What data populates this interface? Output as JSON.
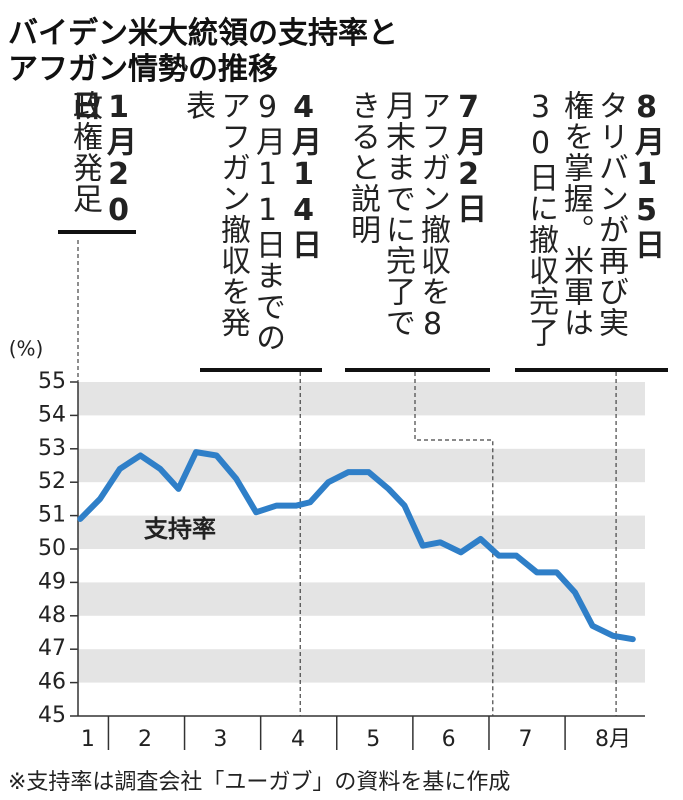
{
  "chart_data": {
    "type": "line",
    "title": [
      "バイデン米大統領の支持率と",
      "アフガン情勢の推移"
    ],
    "y_unit": "(%)",
    "series": [
      {
        "name": "支持率",
        "color": "#2f7fc8",
        "x": [
          1.63,
          1.89,
          2.15,
          2.42,
          2.68,
          2.92,
          3.15,
          3.42,
          3.68,
          3.94,
          4.21,
          4.47,
          4.65,
          4.89,
          5.15,
          5.42,
          5.68,
          5.89,
          6.13,
          6.36,
          6.63,
          6.89,
          7.13,
          7.36,
          7.63,
          7.89,
          8.13,
          8.36,
          8.63,
          8.89
        ],
        "values": [
          50.9,
          51.5,
          52.4,
          52.8,
          52.4,
          51.8,
          52.9,
          52.8,
          52.1,
          51.1,
          51.3,
          51.3,
          51.4,
          52.0,
          52.3,
          52.3,
          51.8,
          51.3,
          50.1,
          50.2,
          49.9,
          50.3,
          49.8,
          49.8,
          49.3,
          49.3,
          48.7,
          47.7,
          47.4,
          47.3
        ]
      }
    ],
    "xlim": [
      1.6,
      9.05
    ],
    "xticks": [
      2,
      3,
      4,
      5,
      6,
      7,
      8
    ],
    "month_labels": [
      {
        "value": 1.73,
        "label": "1"
      },
      {
        "value": 2.48,
        "label": "2"
      },
      {
        "value": 3.47,
        "label": "3"
      },
      {
        "value": 4.49,
        "label": "4"
      },
      {
        "value": 5.48,
        "label": "5"
      },
      {
        "value": 6.47,
        "label": "6"
      },
      {
        "value": 7.48,
        "label": "7"
      },
      {
        "value": 8.63,
        "label": "8月"
      }
    ],
    "ylim": [
      45,
      55
    ],
    "yticks": [
      45,
      46,
      47,
      48,
      49,
      50,
      51,
      52,
      53,
      54,
      55
    ],
    "grid": "bands",
    "annotations": [
      {
        "x": 1.6,
        "date": "1月20日",
        "text": "政権発足"
      },
      {
        "x": 4.52,
        "date": "4月14日",
        "text": "9月11日までのアフガン撤収を発表"
      },
      {
        "x": 7.05,
        "date": "7月2日",
        "text": "アフガン撤収を8月末までに完了できると説明"
      },
      {
        "x": 8.67,
        "date": "8月15日",
        "text": "タリバンが再び実権を掌握。米軍は30日に撤収完了"
      }
    ],
    "note": "※支持率は調査会社「ユーガブ」の資料を基に作成"
  }
}
